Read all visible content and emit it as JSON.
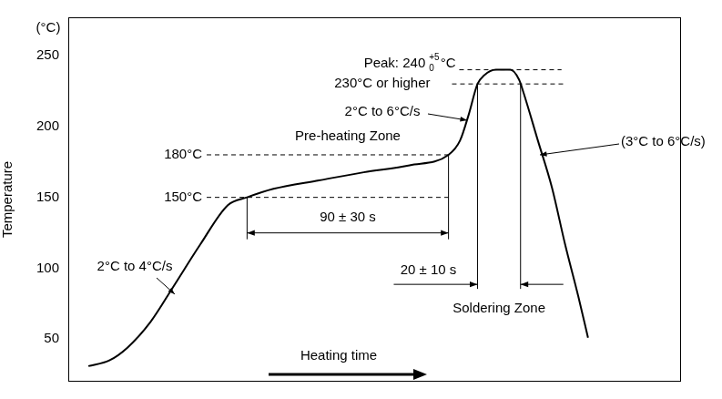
{
  "chart_data": {
    "type": "line",
    "x_label": "Heating time",
    "y_label": "Temperature",
    "y_unit": "(°C)",
    "x": [
      9.2,
      18.75,
      27,
      37.5,
      48,
      60.4,
      72.9,
      81.7,
      93.75,
      114.6,
      135,
      156,
      173.75,
      179,
      183,
      187,
      190,
      195.4,
      202,
      206,
      208,
      214.6,
      221,
      227,
      233,
      237.5
    ],
    "values": [
      31,
      35,
      44,
      62,
      87,
      117,
      144.5,
      150,
      156,
      162,
      167.7,
      172.6,
      180,
      190,
      208.5,
      230,
      236,
      240,
      240,
      233,
      224,
      190,
      157,
      117,
      80.5,
      51
    ],
    "color": "#000000",
    "xlim": [
      0,
      280
    ],
    "ylim": [
      20,
      277
    ],
    "yticks": [
      50,
      100,
      150,
      200,
      250
    ],
    "grid": false,
    "tick_labels": "y",
    "preheat": {
      "label": "Pre-heating Zone",
      "from": {
        "value": 150,
        "label": "150°C"
      },
      "to": {
        "value": 180,
        "label": "180°C"
      },
      "duration": "90 ± 30 s"
    },
    "soldering": {
      "label": "Soldering Zone",
      "above": {
        "value": 230,
        "label": "230°C or higher"
      },
      "duration": "20 ± 10 s"
    },
    "peak": {
      "value": 240,
      "label": "Peak: 240",
      "plus": "+5",
      "minus": "0",
      "unit": "°C"
    },
    "rates": {
      "ramp_up": "2°C to 4°C/s",
      "ramp_peak": "2°C to 6°C/s",
      "cool_down": "(3°C to 6°C/s)"
    }
  }
}
